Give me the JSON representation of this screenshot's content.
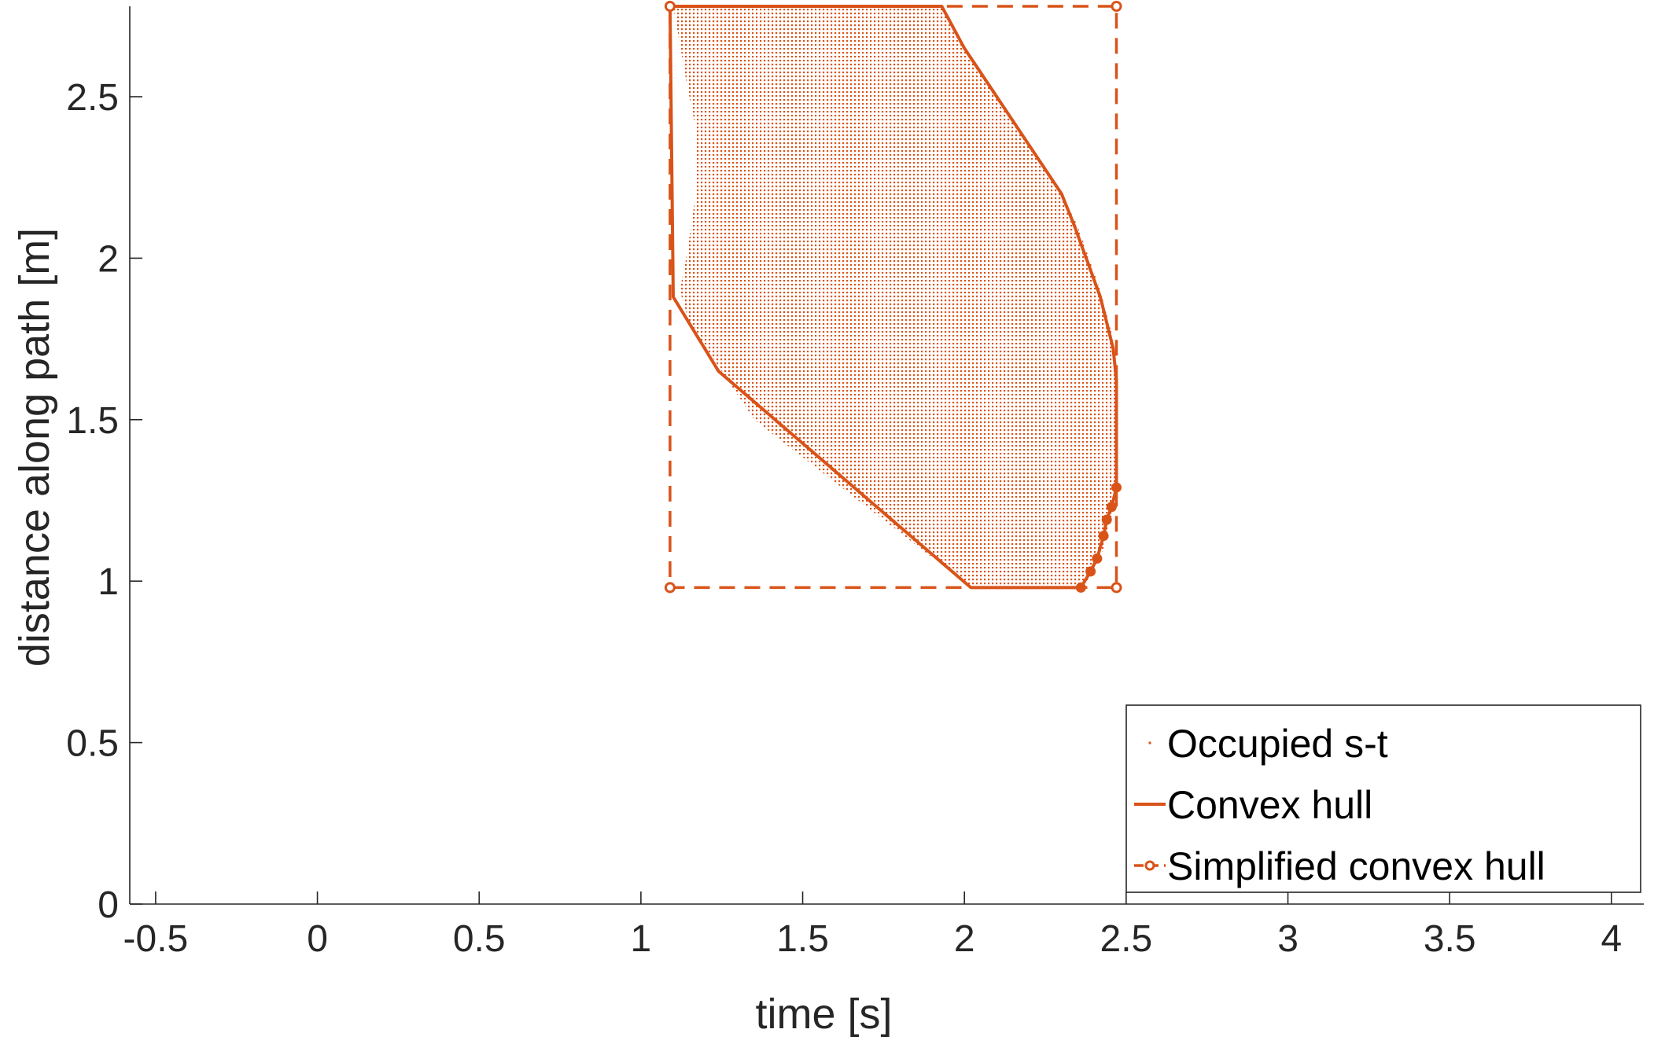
{
  "colors": {
    "accent": "#D95319",
    "axis": "#262626",
    "background": "#FFFFFF"
  },
  "chart_data": {
    "type": "scatter",
    "xlabel": "time [s]",
    "ylabel": "distance along path [m]",
    "xlim": [
      -0.58,
      4.1
    ],
    "ylim": [
      0,
      2.78
    ],
    "xticks": [
      -0.5,
      0,
      0.5,
      1,
      1.5,
      2,
      2.5,
      3,
      3.5,
      4
    ],
    "xtick_labels": [
      "-0.5",
      "0",
      "0.5",
      "1",
      "1.5",
      "2",
      "2.5",
      "3",
      "3.5",
      "4"
    ],
    "yticks": [
      0,
      0.5,
      1,
      1.5,
      2,
      2.5
    ],
    "ytick_labels": [
      "0",
      "0.5",
      "1",
      "1.5",
      "2",
      "2.5"
    ],
    "grid": false,
    "legend_position": "bottom-right",
    "series": [
      {
        "name": "Occupied s-t",
        "style": "dots",
        "color": "#D95319",
        "region_outline": [
          [
            1.1,
            2.78
          ],
          [
            1.93,
            2.78
          ],
          [
            2.0,
            2.65
          ],
          [
            2.3,
            2.2
          ],
          [
            2.35,
            2.1
          ],
          [
            2.42,
            1.9
          ],
          [
            2.46,
            1.75
          ],
          [
            2.47,
            1.6
          ],
          [
            2.47,
            1.3
          ],
          [
            2.455,
            1.2
          ],
          [
            2.43,
            1.1
          ],
          [
            2.4,
            1.04
          ],
          [
            2.37,
            0.98
          ],
          [
            2.02,
            0.98
          ],
          [
            1.35,
            1.5
          ],
          [
            1.25,
            1.65
          ],
          [
            1.15,
            1.8
          ],
          [
            1.12,
            1.9
          ],
          [
            1.14,
            2.0
          ],
          [
            1.17,
            2.2
          ],
          [
            1.17,
            2.4
          ],
          [
            1.14,
            2.55
          ],
          [
            1.1,
            2.78
          ]
        ]
      },
      {
        "name": "Convex hull",
        "style": "solid-line",
        "color": "#D95319",
        "x": [
          1.09,
          1.93,
          2.0,
          2.3,
          2.34,
          2.42,
          2.46,
          2.47,
          2.47,
          2.455,
          2.44,
          2.43,
          2.41,
          2.39,
          2.36,
          2.02,
          1.24,
          1.1,
          1.09
        ],
        "y": [
          2.78,
          2.78,
          2.65,
          2.2,
          2.1,
          1.88,
          1.72,
          1.62,
          1.29,
          1.23,
          1.19,
          1.14,
          1.07,
          1.03,
          0.98,
          0.98,
          1.65,
          1.88,
          2.78
        ]
      },
      {
        "name": "Simplified convex hull",
        "style": "dashed-line-circle-markers",
        "color": "#D95319",
        "x": [
          1.09,
          2.47,
          2.47,
          1.09,
          1.09
        ],
        "y": [
          2.78,
          2.78,
          0.98,
          0.98,
          2.78
        ]
      }
    ]
  }
}
